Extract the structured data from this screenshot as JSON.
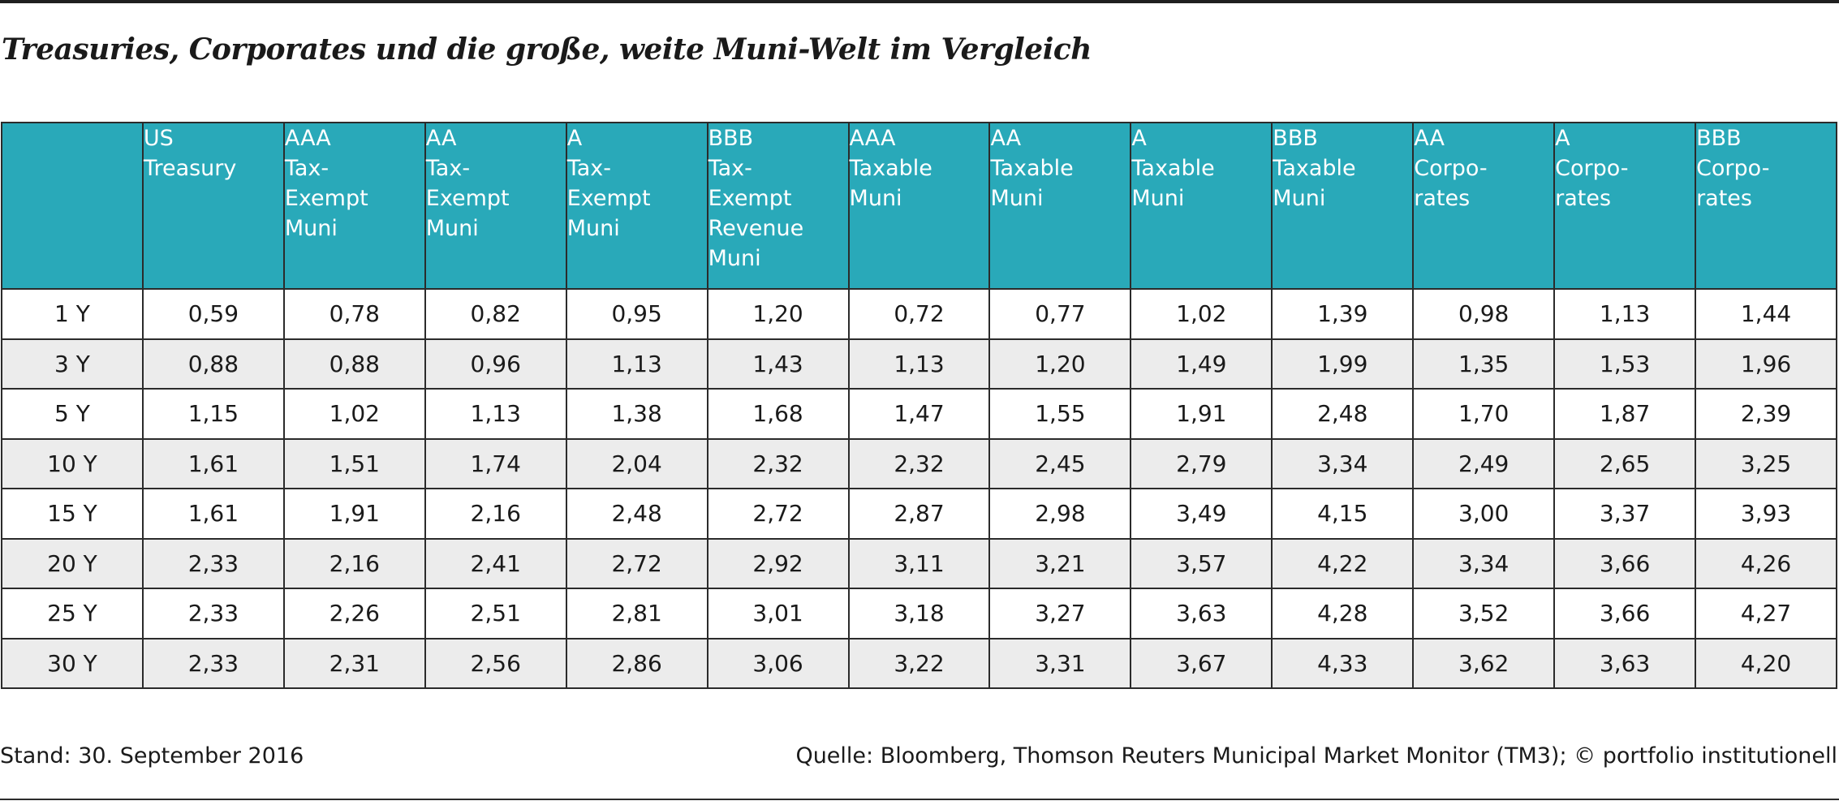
{
  "title": "Treasuries, Corporates und die große, weite Muni-Welt im Vergleich",
  "footer": {
    "stand": "Stand: 30. September 2016",
    "source": "Quelle: Bloomberg, Thomson Reuters Municipal Market Monitor (TM3); © portfolio institutionell"
  },
  "colors": {
    "header_bg": "#29a9b9",
    "alt_row_bg": "#ececec",
    "header_text": "#ffffff"
  },
  "chart_data": {
    "type": "table",
    "title": "Treasuries, Corporates und die große, weite Muni-Welt im Vergleich",
    "columns": [
      "",
      "US\nTreasury",
      "AAA\nTax-\nExempt\nMuni",
      "AA\nTax-\nExempt\nMuni",
      "A\nTax-\nExempt\nMuni",
      "BBB\nTax-\nExempt\nRevenue\nMuni",
      "AAA\nTaxable\nMuni",
      "AA\nTaxable\nMuni",
      "A\nTaxable\nMuni",
      "BBB\nTaxable\nMuni",
      "AA\nCorpo-\nrates",
      "A\nCorpo-\nrates",
      "BBB\nCorpo-\nrates"
    ],
    "rows": [
      [
        "1 Y",
        "0,59",
        "0,78",
        "0,82",
        "0,95",
        "1,20",
        "0,72",
        "0,77",
        "1,02",
        "1,39",
        "0,98",
        "1,13",
        "1,44"
      ],
      [
        "3 Y",
        "0,88",
        "0,88",
        "0,96",
        "1,13",
        "1,43",
        "1,13",
        "1,20",
        "1,49",
        "1,99",
        "1,35",
        "1,53",
        "1,96"
      ],
      [
        "5 Y",
        "1,15",
        "1,02",
        "1,13",
        "1,38",
        "1,68",
        "1,47",
        "1,55",
        "1,91",
        "2,48",
        "1,70",
        "1,87",
        "2,39"
      ],
      [
        "10 Y",
        "1,61",
        "1,51",
        "1,74",
        "2,04",
        "2,32",
        "2,32",
        "2,45",
        "2,79",
        "3,34",
        "2,49",
        "2,65",
        "3,25"
      ],
      [
        "15 Y",
        "1,61",
        "1,91",
        "2,16",
        "2,48",
        "2,72",
        "2,87",
        "2,98",
        "3,49",
        "4,15",
        "3,00",
        "3,37",
        "3,93"
      ],
      [
        "20 Y",
        "2,33",
        "2,16",
        "2,41",
        "2,72",
        "2,92",
        "3,11",
        "3,21",
        "3,57",
        "4,22",
        "3,34",
        "3,66",
        "4,26"
      ],
      [
        "25 Y",
        "2,33",
        "2,26",
        "2,51",
        "2,81",
        "3,01",
        "3,18",
        "3,27",
        "3,63",
        "4,28",
        "3,52",
        "3,66",
        "4,27"
      ],
      [
        "30 Y",
        "2,33",
        "2,31",
        "2,56",
        "2,86",
        "3,06",
        "3,22",
        "3,31",
        "3,67",
        "4,33",
        "3,62",
        "3,63",
        "4,20"
      ]
    ]
  }
}
